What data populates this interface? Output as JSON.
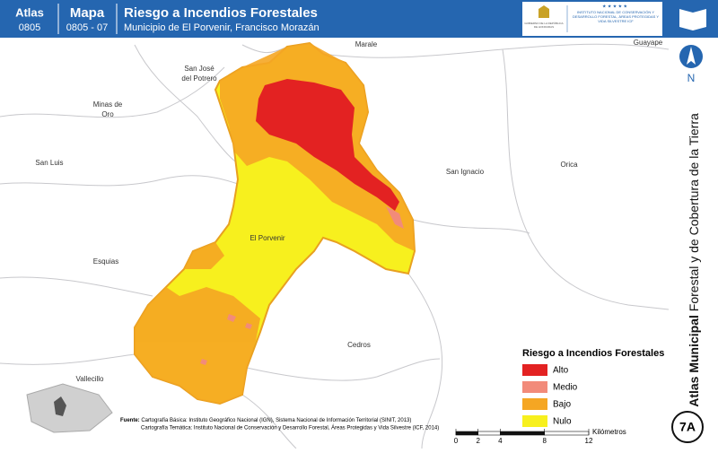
{
  "header": {
    "atlas_label": "Atlas",
    "atlas_code": "0805",
    "map_label": "Mapa",
    "map_code": "0805 - 07",
    "title": "Riesgo a Incendios Forestales",
    "subtitle": "Municipio de El Porvenir, Francisco Morazán",
    "logo_left": "GOBIERNO DE LA REPÚBLICA DE HONDURAS",
    "logo_right": "INSTITUTO NACIONAL DE CONSERVACIÓN Y DESARROLLO FORESTAL, ÁREAS PROTEGIDAS Y VIDA SILVESTRE ICF"
  },
  "sidebar": {
    "north": "N",
    "atlas_bold": "Atlas Municipal",
    "atlas_rest": "Forestal y de Cobertura de la Tierra",
    "sheet": "7A"
  },
  "places": [
    "Marale",
    "Guayape",
    "San José del Potrero",
    "Minas de Oro",
    "San Luis",
    "San Ignacio",
    "Orica",
    "El Porvenir",
    "Esquias",
    "Cedros",
    "Vallecillo"
  ],
  "legend": {
    "title": "Riesgo a Incendios Forestales",
    "items": [
      {
        "label": "Alto",
        "color": "#e32222"
      },
      {
        "label": "Medio",
        "color": "#f28b7a"
      },
      {
        "label": "Bajo",
        "color": "#f5a623"
      },
      {
        "label": "Nulo",
        "color": "#f7f01e"
      }
    ]
  },
  "source": {
    "heading": "Fuente:",
    "line1": "Cartografía Básica: Instituto Geográfico Nacional (IGN), Sistema Nacional de Información Territorial (SINIT, 2013)",
    "line2": "Cartografía Temática: Instituto Nacional de Conservación y Desarrollo Forestal, Áreas Protegidas y Vida Silvestre (ICF, 2014)"
  },
  "scale": {
    "ticks": [
      0,
      2,
      4,
      8,
      12
    ],
    "unit": "Kilómetros"
  }
}
